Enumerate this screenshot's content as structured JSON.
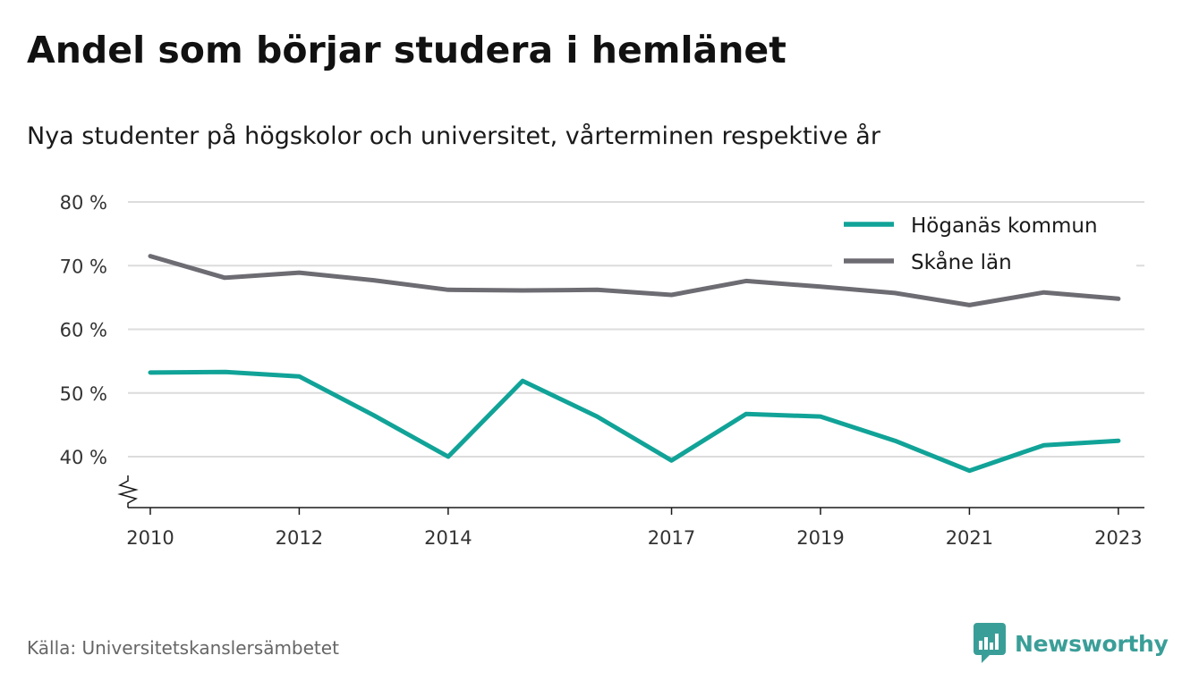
{
  "title": "Andel som börjar studera i hemlänet",
  "subtitle": "Nya studenter på högskolor och universitet, vårterminen respektive år",
  "source": "Källa: Universitetskanslersämbetet",
  "brand": {
    "name": "Newsworthy",
    "icon": "newsworthy-logo-icon",
    "color": "#3a9e98"
  },
  "chart_data": {
    "type": "line",
    "x": [
      2010,
      2011,
      2012,
      2013,
      2014,
      2015,
      2016,
      2017,
      2018,
      2019,
      2020,
      2021,
      2022,
      2023
    ],
    "x_tick_labels": [
      "2010",
      "2012",
      "2014",
      "2017",
      "2019",
      "2021",
      "2023"
    ],
    "y_ticks": [
      40,
      50,
      60,
      70,
      80
    ],
    "y_tick_labels": [
      "40 %",
      "50 %",
      "60 %",
      "70 %",
      "80 %"
    ],
    "ylim": [
      32,
      80
    ],
    "xlim": [
      2009.7,
      2023.35
    ],
    "y_axis_break": true,
    "grid": true,
    "legend_position": "top-right",
    "series": [
      {
        "name": "Höganäs kommun",
        "color": "#11a398",
        "values": [
          53.2,
          53.3,
          52.6,
          46.5,
          40.0,
          51.9,
          46.3,
          39.4,
          46.7,
          46.3,
          42.5,
          37.8,
          41.8,
          42.5
        ]
      },
      {
        "name": "Skåne län",
        "color": "#6e6c73",
        "values": [
          71.5,
          68.1,
          68.9,
          67.7,
          66.2,
          66.1,
          66.2,
          65.4,
          67.6,
          66.7,
          65.7,
          63.8,
          65.8,
          64.8
        ]
      }
    ]
  }
}
